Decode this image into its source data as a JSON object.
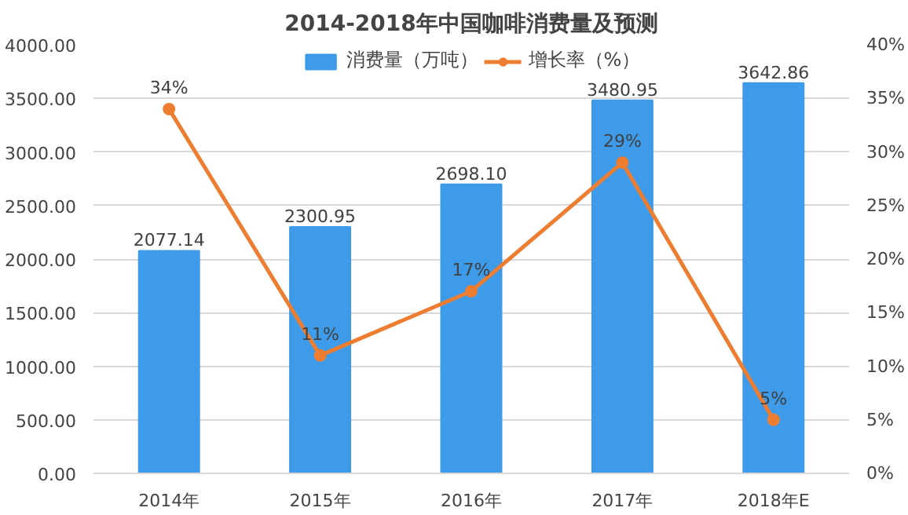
{
  "chart_data": {
    "type": "bar",
    "title": "2014-2018年中国咖啡消费量及预测",
    "categories": [
      "2014年",
      "2015年",
      "2016年",
      "2017年",
      "2018年E"
    ],
    "series": [
      {
        "name": "消费量（万吨）",
        "color": "#3d9be9",
        "values": [
          2077.14,
          2300.95,
          2698.1,
          3480.95,
          3642.86
        ],
        "value_labels": [
          "2077.14",
          "2300.95",
          "2698.10",
          "3480.95",
          "3642.86"
        ]
      },
      {
        "name": "增长率（%）",
        "type": "line",
        "axis": "y2",
        "color": "#ed7d31",
        "values": [
          34,
          11,
          17,
          29,
          5
        ],
        "value_labels": [
          "34%",
          "11%",
          "17%",
          "29%",
          "5%"
        ]
      }
    ],
    "ylim": [
      0,
      4000
    ],
    "yticks": [
      {
        "value": 0,
        "label": "0.00"
      },
      {
        "value": 500,
        "label": "500.00"
      },
      {
        "value": 1000,
        "label": "1000.00"
      },
      {
        "value": 1500,
        "label": "1500.00"
      },
      {
        "value": 2000,
        "label": "2000.00"
      },
      {
        "value": 2500,
        "label": "2500.00"
      },
      {
        "value": 3000,
        "label": "3000.00"
      },
      {
        "value": 3500,
        "label": "3500.00"
      },
      {
        "value": 4000,
        "label": "4000.00"
      }
    ],
    "y2lim": [
      0,
      40
    ],
    "y2ticks": [
      {
        "value": 0,
        "label": "0%"
      },
      {
        "value": 5,
        "label": "5%"
      },
      {
        "value": 10,
        "label": "10%"
      },
      {
        "value": 15,
        "label": "15%"
      },
      {
        "value": 20,
        "label": "20%"
      },
      {
        "value": 25,
        "label": "25%"
      },
      {
        "value": 30,
        "label": "30%"
      },
      {
        "value": 35,
        "label": "35%"
      },
      {
        "value": 40,
        "label": "40%"
      }
    ],
    "grid": "y",
    "legend": "top",
    "marker": "circle",
    "line_style": "solid"
  }
}
